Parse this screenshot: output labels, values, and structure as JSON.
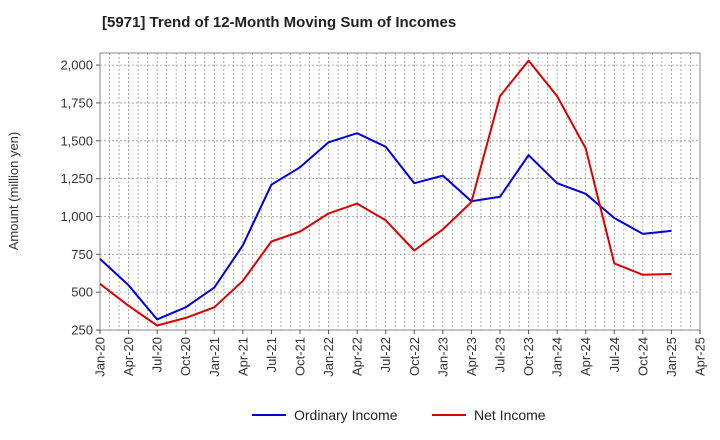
{
  "chart_data": {
    "type": "line",
    "title": "[5971]  Trend of 12-Month Moving Sum of Incomes",
    "ylabel": "Amount (million yen)",
    "xlabel": "",
    "ylim": [
      250,
      2080
    ],
    "y_ticks": [
      250,
      500,
      750,
      1000,
      1250,
      1500,
      1750,
      2000
    ],
    "y_tick_labels": [
      "250",
      "500",
      "750",
      "1,000",
      "1,250",
      "1,500",
      "1,750",
      "2,000"
    ],
    "x_ticks": [
      "Jan-20",
      "Apr-20",
      "Jul-20",
      "Oct-20",
      "Jan-21",
      "Apr-21",
      "Jul-21",
      "Oct-21",
      "Jan-22",
      "Apr-22",
      "Jul-22",
      "Oct-22",
      "Jan-23",
      "Apr-23",
      "Jul-23",
      "Oct-23",
      "Jan-24",
      "Apr-24",
      "Jul-24",
      "Oct-24",
      "Jan-25",
      "Apr-25"
    ],
    "grid": true,
    "legend_position": "bottom",
    "series": [
      {
        "name": "Ordinary Income",
        "color": "#0000dd",
        "values": [
          720,
          545,
          320,
          400,
          530,
          810,
          1210,
          1325,
          1490,
          1550,
          1460,
          1220,
          1270,
          1100,
          1130,
          1405,
          1220,
          1150,
          990,
          885,
          905
        ]
      },
      {
        "name": "Net Income",
        "color": "#dd0000",
        "values": [
          555,
          410,
          280,
          330,
          400,
          575,
          835,
          900,
          1020,
          1085,
          975,
          775,
          915,
          1095,
          1795,
          2030,
          1795,
          1450,
          690,
          615,
          620
        ]
      }
    ]
  }
}
